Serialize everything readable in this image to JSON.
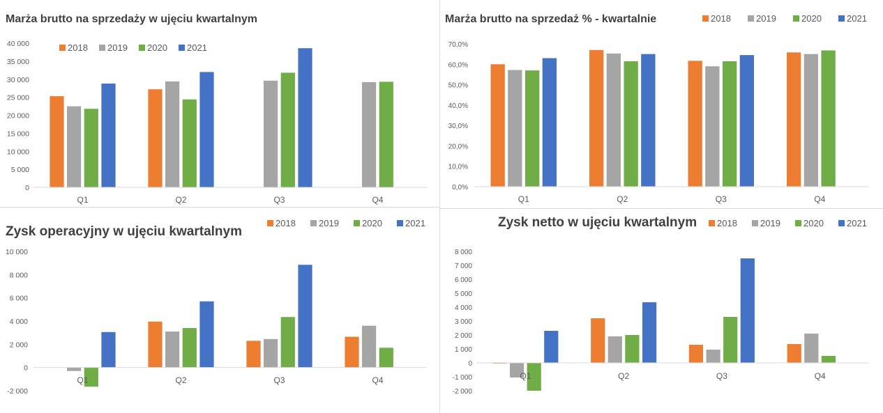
{
  "legend_labels": [
    "2018",
    "2019",
    "2020",
    "2021"
  ],
  "colors": {
    "2018": "#ED7D31",
    "2019": "#A5A5A5",
    "2020": "#70AD47",
    "2021": "#4472C4"
  },
  "chart_data": [
    {
      "type": "bar",
      "title": "Marża brutto na sprzedaży w ujęciu kwartalnym",
      "categories": [
        "Q1",
        "Q2",
        "Q3",
        "Q4"
      ],
      "series": [
        {
          "name": "2018",
          "values": [
            25300,
            27200,
            null,
            null
          ]
        },
        {
          "name": "2019",
          "values": [
            22500,
            29400,
            29600,
            29200
          ]
        },
        {
          "name": "2020",
          "values": [
            21800,
            24400,
            31800,
            29300
          ]
        },
        {
          "name": "2021",
          "values": [
            28800,
            32000,
            38600,
            null
          ]
        }
      ],
      "ylim": [
        0,
        40000
      ],
      "yticks": [
        "0",
        "5 000",
        "10 000",
        "15 000",
        "20 000",
        "25 000",
        "30 000",
        "35 000",
        "40 000"
      ],
      "legend_position": "top-left",
      "grid": false
    },
    {
      "type": "bar",
      "title": "Marża brutto na sprzedaż % - kwartalnie",
      "categories": [
        "Q1",
        "Q2",
        "Q3",
        "Q4"
      ],
      "series": [
        {
          "name": "2018",
          "values": [
            60.0,
            67.0,
            61.7,
            65.8
          ]
        },
        {
          "name": "2019",
          "values": [
            57.2,
            65.3,
            59.0,
            65.0
          ]
        },
        {
          "name": "2020",
          "values": [
            57.0,
            61.5,
            61.5,
            66.8
          ]
        },
        {
          "name": "2021",
          "values": [
            63.0,
            65.0,
            64.5,
            null
          ]
        }
      ],
      "ylim": [
        0,
        70
      ],
      "yticks": [
        "0,0%",
        "10,0%",
        "20,0%",
        "30,0%",
        "40,0%",
        "50,0%",
        "60,0%",
        "70,0%"
      ],
      "legend_position": "top-right",
      "grid": false
    },
    {
      "type": "bar",
      "title": "Zysk operacyjny w ujęciu kwartalnym",
      "categories": [
        "Q1",
        "Q2",
        "Q3",
        "Q4"
      ],
      "series": [
        {
          "name": "2018",
          "values": [
            null,
            3950,
            2300,
            2650
          ]
        },
        {
          "name": "2019",
          "values": [
            -300,
            3100,
            2450,
            3600
          ]
        },
        {
          "name": "2020",
          "values": [
            -1650,
            3400,
            4350,
            1700
          ]
        },
        {
          "name": "2021",
          "values": [
            3050,
            5700,
            8850,
            null
          ]
        }
      ],
      "ylim": [
        -2000,
        10000
      ],
      "yticks": [
        "-2 000",
        "0",
        "2 000",
        "4 000",
        "6 000",
        "8 000",
        "10 000"
      ],
      "legend_position": "top-right",
      "grid": false
    },
    {
      "type": "bar",
      "title": "Zysk netto w ujęciu kwartalnym",
      "categories": [
        "Q1",
        "Q2",
        "Q3",
        "Q4"
      ],
      "series": [
        {
          "name": "2018",
          "values": [
            -50,
            3200,
            1300,
            1350
          ]
        },
        {
          "name": "2019",
          "values": [
            -1050,
            1900,
            950,
            2100
          ]
        },
        {
          "name": "2020",
          "values": [
            -2000,
            2000,
            3300,
            500
          ]
        },
        {
          "name": "2021",
          "values": [
            2300,
            4350,
            7500,
            null
          ]
        }
      ],
      "ylim": [
        -2000,
        8000
      ],
      "yticks": [
        "-2 000",
        "-1 000",
        "0",
        "1 000",
        "2 000",
        "3 000",
        "4 000",
        "5 000",
        "6 000",
        "7 000",
        "8 000"
      ],
      "legend_position": "top-right",
      "grid": false
    }
  ]
}
